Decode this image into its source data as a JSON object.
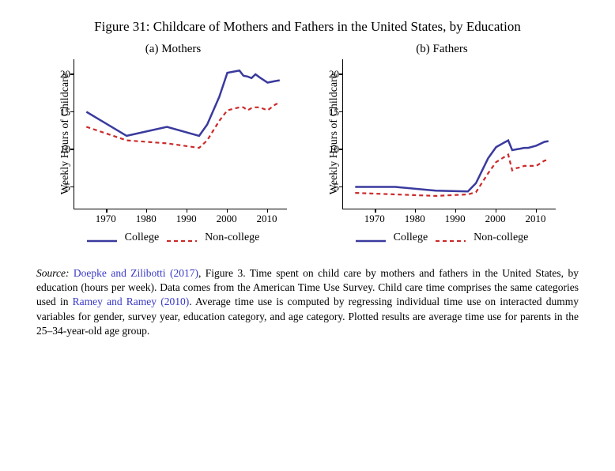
{
  "figure_title": "Figure 31: Childcare of Mothers and Fathers in the United States, by Education",
  "panels": {
    "a": {
      "title": "(a) Mothers",
      "ylabel": "Weekly Hours of Childcare",
      "type": "line",
      "xlim": [
        1962,
        2015
      ],
      "ylim": [
        2,
        22
      ],
      "xticks": [
        1970,
        1980,
        1990,
        2000,
        2010
      ],
      "yticks": [
        5,
        10,
        15,
        20
      ],
      "background_color": "#ffffff",
      "axis_color": "#000000",
      "series": {
        "college": {
          "label": "College",
          "color": "#3a3a9e",
          "line_width": 2.5,
          "dash": "none",
          "x": [
            1965,
            1975,
            1985,
            1993,
            1995,
            1998,
            2000,
            2003,
            2004,
            2005,
            2006,
            2007,
            2008,
            2010,
            2012,
            2013
          ],
          "y": [
            15.0,
            11.8,
            13.0,
            11.8,
            13.3,
            17.0,
            20.2,
            20.5,
            19.8,
            19.7,
            19.5,
            20.0,
            19.6,
            18.9,
            19.1,
            19.2
          ]
        },
        "noncollege": {
          "label": "Non-college",
          "color": "#cc2a2a",
          "line_width": 2.2,
          "dash": "5,4",
          "x": [
            1965,
            1975,
            1985,
            1993,
            1995,
            1998,
            2000,
            2003,
            2004,
            2005,
            2006,
            2007,
            2008,
            2010,
            2012,
            2013
          ],
          "y": [
            13.0,
            11.2,
            10.8,
            10.2,
            11.2,
            13.8,
            15.2,
            15.6,
            15.6,
            15.2,
            15.5,
            15.6,
            15.6,
            15.2,
            16.0,
            16.2
          ]
        }
      }
    },
    "b": {
      "title": "(b) Fathers",
      "ylabel": "Weekly Hours of Childcare",
      "type": "line",
      "xlim": [
        1962,
        2015
      ],
      "ylim": [
        2,
        22
      ],
      "xticks": [
        1970,
        1980,
        1990,
        2000,
        2010
      ],
      "yticks": [
        5,
        10,
        15,
        20
      ],
      "background_color": "#ffffff",
      "axis_color": "#000000",
      "series": {
        "college": {
          "label": "College",
          "color": "#3a3a9e",
          "line_width": 2.5,
          "dash": "none",
          "x": [
            1965,
            1975,
            1985,
            1993,
            1995,
            1998,
            2000,
            2003,
            2004,
            2005,
            2006,
            2007,
            2008,
            2010,
            2012,
            2013
          ],
          "y": [
            5.0,
            5.0,
            4.5,
            4.4,
            5.5,
            8.8,
            10.3,
            11.2,
            9.9,
            10.0,
            10.1,
            10.2,
            10.2,
            10.5,
            11.0,
            11.1
          ]
        },
        "noncollege": {
          "label": "Non-college",
          "color": "#cc2a2a",
          "line_width": 2.2,
          "dash": "5,4",
          "x": [
            1965,
            1975,
            1985,
            1993,
            1995,
            1998,
            2000,
            2003,
            2004,
            2005,
            2006,
            2007,
            2008,
            2010,
            2012,
            2013
          ],
          "y": [
            4.2,
            4.0,
            3.8,
            4.0,
            4.3,
            6.8,
            8.3,
            9.3,
            7.2,
            7.5,
            7.6,
            7.8,
            7.8,
            7.8,
            8.5,
            8.6
          ]
        }
      }
    }
  },
  "legend": {
    "college": "College",
    "noncollege": "Non-college"
  },
  "source": {
    "prefix": "Source:",
    "link1": "Doepke and Zilibotti (2017)",
    "mid1": ", Figure 3. Time spent on child care by mothers and fathers in the United States, by education (hours per week). Data comes from the American Time Use Survey. Child care time comprises the same categories used in ",
    "link2": "Ramey and Ramey (2010)",
    "mid2": ". Average time use is computed by regressing individual time use on interacted dummy variables for gender, survey year, education category, and age category. Plotted results are average time use for parents in the 25–34-year-old age group.",
    "link_color": "#3838c8"
  }
}
